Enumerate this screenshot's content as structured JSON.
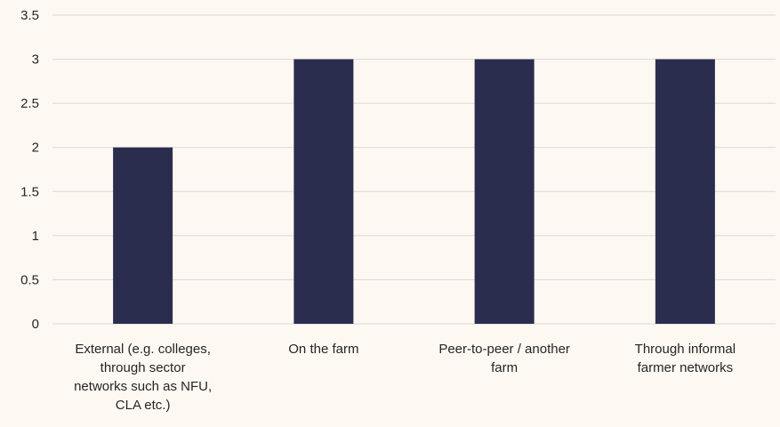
{
  "chart_data": {
    "type": "bar",
    "categories": [
      [
        "External (e.g. colleges,",
        "through sector",
        "networks such as NFU,",
        "CLA etc.)"
      ],
      [
        "On the farm"
      ],
      [
        "Peer-to-peer / another",
        "farm"
      ],
      [
        "Through informal",
        "farmer networks"
      ]
    ],
    "values": [
      2,
      3,
      3,
      3
    ],
    "ylim": [
      0,
      3.5
    ],
    "yticks": [
      "0",
      "0.5",
      "1",
      "1.5",
      "2",
      "2.5",
      "3",
      "3.5"
    ],
    "title": "",
    "xlabel": "",
    "ylabel": "",
    "grid": true,
    "legend": "none",
    "colors": {
      "bar": "#2b2d4f",
      "grid": "#d9d9d9",
      "background": "#fdf8f2"
    }
  }
}
